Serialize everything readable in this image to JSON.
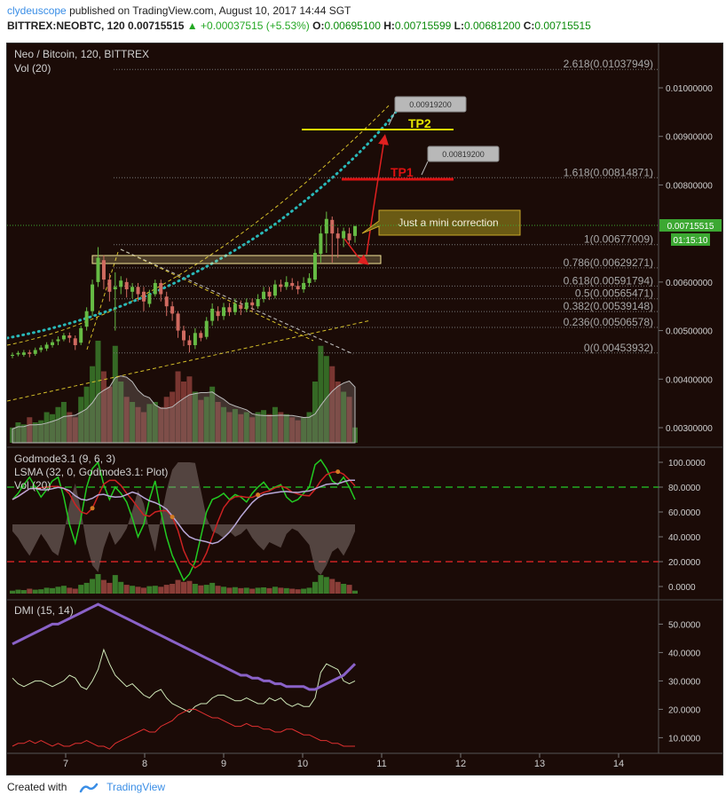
{
  "header": {
    "user": "clydeuscope",
    "published": "published on TradingView.com, August 10, 2017 14:44 SGT",
    "symbol": "BITTREX:NEOBTC, 120",
    "last": "0.00715515",
    "change_arrow": "▲",
    "change": "+0.00037515 (+5.53%)",
    "o_label": "O:",
    "o": "0.00695100",
    "h_label": "H:",
    "h": "0.00715599",
    "l_label": "L:",
    "l": "0.00681200",
    "c_label": "C:",
    "c": "0.00715515"
  },
  "main_pane": {
    "title": "Neo / Bitcoin, 120, BITTREX",
    "vol_label": "Vol (20)",
    "price_label": "0.00715515",
    "countdown": "01:15:10",
    "y_ticks": [
      "0.01000000",
      "0.00900000",
      "0.00800000",
      "0.00600000",
      "0.00500000",
      "0.00400000",
      "0.00300000"
    ],
    "fib_levels": [
      {
        "label": "2.618(0.01037949)",
        "price": 0.01037949
      },
      {
        "label": "1.618(0.00814871)",
        "price": 0.00814871
      },
      {
        "label": "1(0.00677009)",
        "price": 0.00677009
      },
      {
        "label": "0.786(0.00629271)",
        "price": 0.00629271
      },
      {
        "label": "0.618(0.00591794)",
        "price": 0.00591794
      },
      {
        "label": "0.5(0.00565471)",
        "price": 0.00565471
      },
      {
        "label": "0.382(0.00539148)",
        "price": 0.00539148
      },
      {
        "label": "0.236(0.00506578)",
        "price": 0.00506578
      },
      {
        "label": "0(0.00453932)",
        "price": 0.00453932
      }
    ],
    "tp1_label": "TP1",
    "tp2_label": "TP2",
    "tp1_flag": "0.00819200",
    "tp2_flag": "0.00919200",
    "annotation": "Just a mini correction",
    "colors": {
      "up": "#66bb44",
      "down": "#d06a60",
      "fib": "#888888",
      "tp2": "#e6e600",
      "tp1": "#dd1111",
      "teal": "#29b8b8",
      "channel": "#d6c02a"
    }
  },
  "godmode_pane": {
    "title": "Godmode3.1 (9, 6, 3)",
    "lsma_label": "LSMA (32, 0, Godmode3.1: Plot)",
    "vol_label": "Vol (20)",
    "y_ticks": [
      "100.0000",
      "80.0000",
      "60.0000",
      "40.0000",
      "20.0000",
      "0.0000"
    ]
  },
  "dmi_pane": {
    "title": "DMI (15, 14)",
    "y_ticks": [
      "50.0000",
      "40.0000",
      "30.0000",
      "20.0000",
      "10.0000"
    ]
  },
  "x_axis": {
    "ticks": [
      "7",
      "8",
      "9",
      "10",
      "11",
      "12",
      "13",
      "14"
    ]
  },
  "footer": {
    "created_with": "Created with",
    "brand": "TradingView"
  }
}
